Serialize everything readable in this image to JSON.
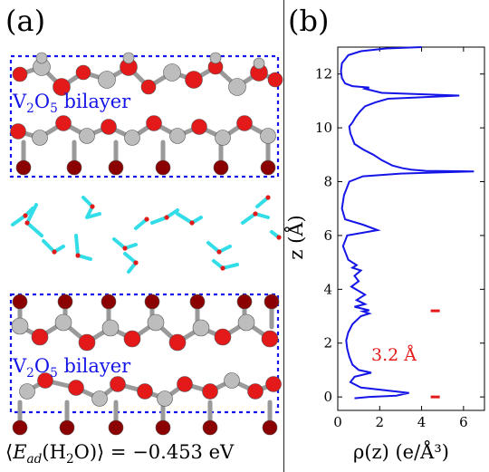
{
  "panels": {
    "a_label": "(a)",
    "b_label": "(b)"
  },
  "structure": {
    "top_bilayer_label": {
      "base": "V",
      "sub1": "2",
      "mid": "O",
      "sub2": "5",
      "rest": " bilayer"
    },
    "bottom_bilayer_label": {
      "base": "V",
      "sub1": "2",
      "mid": "O",
      "sub2": "5",
      "rest": " bilayer"
    },
    "caption": {
      "open": "⟨",
      "symbol": "E",
      "subscript": "ad",
      "molecule_open": "(H",
      "molecule_sub": "2",
      "molecule_close": "O)",
      "close": "⟩",
      "equals": " = ",
      "value": "−0.453 eV"
    }
  },
  "colors": {
    "box": "#1515e8",
    "oxygen": "#e41a1a",
    "vanadium_ox": "#8b0000",
    "vanadium": "#bdbdbd",
    "hydrogen": "#33dde8",
    "profile_line": "#1515e8",
    "marker": "#e41a1a"
  },
  "chart_data": {
    "type": "line",
    "title": "",
    "xlabel": "ρ(z) (e/Å³)",
    "ylabel": "z (Å)",
    "xlim": [
      0,
      7
    ],
    "ylim": [
      -0.5,
      13
    ],
    "xticks": [
      "0",
      "2",
      "4",
      "6"
    ],
    "yticks": [
      "0",
      "2",
      "4",
      "6",
      "8",
      "10",
      "12"
    ],
    "annotation": "3.2 Å",
    "markers": [
      {
        "x": 4.65,
        "y": 3.2
      },
      {
        "x": 4.65,
        "y": 0.0
      }
    ],
    "series": [
      {
        "x": [
          4.0,
          2.3,
          1.1,
          0.5,
          0.2,
          0.15,
          0.2,
          0.35,
          0.7,
          1.5,
          1.3,
          2.1,
          5.8,
          2.4,
          1.8,
          1.3,
          1.05,
          0.85,
          0.7,
          0.55,
          0.6,
          0.8,
          1.2,
          1.7,
          2.1,
          2.6,
          3.1,
          3.5,
          4.2,
          6.5,
          3.0,
          1.2,
          0.55,
          0.3,
          0.2,
          0.35,
          1.2,
          1.9,
          0.45,
          0.25,
          0.5,
          0.9,
          0.7,
          1.1,
          0.8,
          1.0,
          0.65,
          1.3,
          0.9,
          1.3,
          0.8,
          1.5,
          1.2,
          1.5,
          1.1,
          0.7,
          0.5,
          0.4,
          0.45,
          0.55,
          0.7,
          1.0,
          1.6,
          0.8,
          0.6,
          1.1,
          3.4,
          2.8,
          1.5,
          0.8
        ],
        "y": [
          13.0,
          12.95,
          12.85,
          12.7,
          12.4,
          12.1,
          11.85,
          11.65,
          11.55,
          11.5,
          11.45,
          11.3,
          11.2,
          11.08,
          10.95,
          10.8,
          10.6,
          10.4,
          10.2,
          10.05,
          9.8,
          9.4,
          9.2,
          9.0,
          8.8,
          8.6,
          8.5,
          8.45,
          8.4,
          8.38,
          8.3,
          8.2,
          8.0,
          7.5,
          7.0,
          6.6,
          6.4,
          6.2,
          6.0,
          5.6,
          5.1,
          4.9,
          4.8,
          4.7,
          4.5,
          4.3,
          4.1,
          3.8,
          3.6,
          3.45,
          3.35,
          3.22,
          3.18,
          3.1,
          3.0,
          2.7,
          2.4,
          2.1,
          1.8,
          1.5,
          1.2,
          1.0,
          0.9,
          0.75,
          0.55,
          0.35,
          0.15,
          0.05,
          0.0,
          -0.05
        ]
      }
    ]
  }
}
